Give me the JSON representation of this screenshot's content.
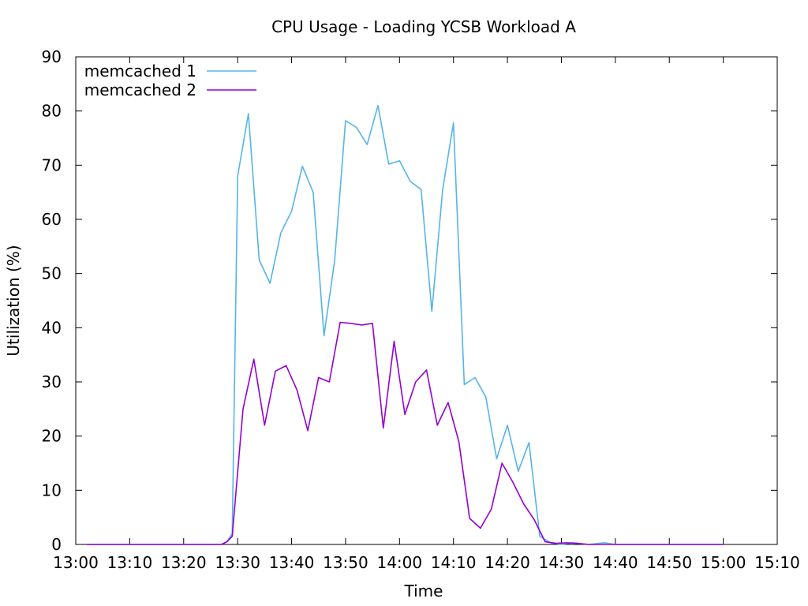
{
  "chart_data": {
    "type": "line",
    "title": "CPU Usage - Loading YCSB Workload A",
    "xlabel": "Time",
    "ylabel": "Utilization (%)",
    "x_ticks": [
      "13:00",
      "13:10",
      "13:20",
      "13:30",
      "13:40",
      "13:50",
      "14:00",
      "14:10",
      "14:20",
      "14:30",
      "14:40",
      "14:50",
      "15:00",
      "15:10"
    ],
    "xlim": [
      "13:00",
      "15:10"
    ],
    "ylim": [
      0,
      90
    ],
    "y_ticks": [
      0,
      10,
      20,
      30,
      40,
      50,
      60,
      70,
      80,
      90
    ],
    "grid": false,
    "legend_position": "top-left",
    "series": [
      {
        "name": "memcached 1",
        "color": "#56b4e9",
        "points": [
          [
            "13:02",
            0
          ],
          [
            "13:05",
            0
          ],
          [
            "13:10",
            0
          ],
          [
            "13:15",
            0
          ],
          [
            "13:20",
            0
          ],
          [
            "13:25",
            0
          ],
          [
            "13:27",
            0
          ],
          [
            "13:28",
            0.5
          ],
          [
            "13:29",
            2
          ],
          [
            "13:30",
            68
          ],
          [
            "13:32",
            79.5
          ],
          [
            "13:34",
            52.5
          ],
          [
            "13:36",
            48.2
          ],
          [
            "13:38",
            57.5
          ],
          [
            "13:40",
            61.5
          ],
          [
            "13:42",
            69.8
          ],
          [
            "13:44",
            65
          ],
          [
            "13:46",
            38.5
          ],
          [
            "13:48",
            52.5
          ],
          [
            "13:50",
            78.2
          ],
          [
            "13:52",
            77
          ],
          [
            "13:54",
            73.8
          ],
          [
            "13:56",
            81
          ],
          [
            "13:58",
            70.2
          ],
          [
            "14:00",
            70.8
          ],
          [
            "14:02",
            67
          ],
          [
            "14:04",
            65.5
          ],
          [
            "14:06",
            43
          ],
          [
            "14:08",
            65.5
          ],
          [
            "14:10",
            77.8
          ],
          [
            "14:12",
            29.5
          ],
          [
            "14:14",
            30.8
          ],
          [
            "14:16",
            27.2
          ],
          [
            "14:18",
            15.8
          ],
          [
            "14:20",
            22
          ],
          [
            "14:22",
            13.5
          ],
          [
            "14:24",
            18.8
          ],
          [
            "14:26",
            1.5
          ],
          [
            "14:28",
            0.3
          ],
          [
            "14:30",
            0
          ],
          [
            "14:32",
            0.3
          ],
          [
            "14:35",
            0
          ],
          [
            "14:38",
            0.3
          ],
          [
            "14:40",
            0
          ],
          [
            "14:45",
            0
          ],
          [
            "14:50",
            0
          ],
          [
            "14:55",
            0
          ],
          [
            "15:00",
            0
          ]
        ]
      },
      {
        "name": "memcached 2",
        "color": "#9400d3",
        "points": [
          [
            "13:02",
            0
          ],
          [
            "13:05",
            0
          ],
          [
            "13:10",
            0
          ],
          [
            "13:15",
            0
          ],
          [
            "13:20",
            0
          ],
          [
            "13:25",
            0
          ],
          [
            "13:27",
            0
          ],
          [
            "13:28",
            0.5
          ],
          [
            "13:29",
            1.5
          ],
          [
            "13:31",
            25
          ],
          [
            "13:33",
            34.2
          ],
          [
            "13:35",
            22
          ],
          [
            "13:37",
            32
          ],
          [
            "13:39",
            33
          ],
          [
            "13:41",
            28.5
          ],
          [
            "13:43",
            21
          ],
          [
            "13:45",
            30.8
          ],
          [
            "13:47",
            30
          ],
          [
            "13:49",
            41
          ],
          [
            "13:51",
            40.8
          ],
          [
            "13:53",
            40.5
          ],
          [
            "13:55",
            40.8
          ],
          [
            "13:57",
            21.5
          ],
          [
            "13:59",
            37.5
          ],
          [
            "14:01",
            24
          ],
          [
            "14:03",
            30
          ],
          [
            "14:05",
            32.2
          ],
          [
            "14:07",
            22
          ],
          [
            "14:09",
            26.2
          ],
          [
            "14:11",
            19
          ],
          [
            "14:13",
            4.8
          ],
          [
            "14:15",
            3
          ],
          [
            "14:17",
            6.5
          ],
          [
            "14:19",
            15
          ],
          [
            "14:21",
            11.5
          ],
          [
            "14:23",
            7.5
          ],
          [
            "14:25",
            4.5
          ],
          [
            "14:27",
            0.5
          ],
          [
            "14:29",
            0.2
          ],
          [
            "14:31",
            0.3
          ],
          [
            "14:33",
            0.2
          ],
          [
            "14:35",
            0
          ],
          [
            "14:40",
            0
          ],
          [
            "14:45",
            0
          ],
          [
            "14:50",
            0
          ],
          [
            "14:55",
            0
          ],
          [
            "15:00",
            0
          ]
        ]
      }
    ]
  }
}
